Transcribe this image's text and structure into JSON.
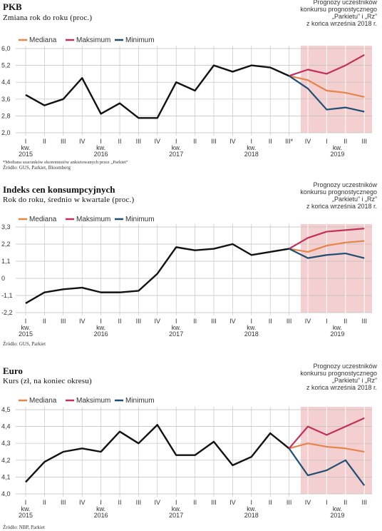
{
  "colors": {
    "mediana": "#e8834a",
    "maksimum": "#c2305a",
    "minimum": "#1f4e74",
    "actual": "#111111",
    "forecast_band": "#f3cfcf",
    "grid": "#bdbdbd"
  },
  "legend": {
    "mediana": "Mediana",
    "maksimum": "Maksimum",
    "minimum": "Minimum"
  },
  "forecast_note": [
    "Prognozy uczestników",
    "konkursu prognostycznego",
    "„Parkietu” i „Rz”",
    "z końca września 2018 r."
  ],
  "x_axis": {
    "quarters": [
      "I",
      "II",
      "III",
      "IV",
      "I",
      "II",
      "III",
      "IV",
      "I",
      "II",
      "III",
      "IV",
      "I",
      "II",
      "III",
      "IV",
      "I",
      "II",
      "III"
    ],
    "year_marks": [
      {
        "kw": "kw.",
        "year": "2015"
      },
      {
        "kw": "kw.",
        "year": "2016"
      },
      {
        "kw": "kw.",
        "year": "2017"
      },
      {
        "kw": "kw.",
        "year": "2018"
      },
      {
        "kw": "kw.",
        "year": "2019"
      }
    ]
  },
  "panels": [
    {
      "title": "PKB",
      "subtitle": "Zmiana rok do roku (proc.)",
      "note": "*Mediana szacunków ekonomistów ankietowanych przez „Parkiet”",
      "source": "Źródło: GUS, Parkiet, Bloomberg",
      "third_q_2018_label": "III*",
      "chart_data": {
        "type": "line",
        "y_ticks": [
          "6,0",
          "5,2",
          "4,4",
          "3,6",
          "2,8",
          "2,0"
        ],
        "ylim": [
          2.0,
          6.0
        ],
        "actual": [
          3.8,
          3.3,
          3.6,
          4.6,
          2.9,
          3.4,
          2.7,
          2.7,
          4.4,
          4.0,
          5.2,
          4.9,
          5.2,
          5.1,
          4.7
        ],
        "series": [
          {
            "name": "Mediana",
            "values": [
              4.7,
              4.5,
              4.0,
              3.9,
              3.7
            ]
          },
          {
            "name": "Maksimum",
            "values": [
              4.7,
              5.0,
              4.8,
              5.2,
              5.7
            ]
          },
          {
            "name": "Minimum",
            "values": [
              4.7,
              4.1,
              3.1,
              3.2,
              3.0
            ]
          }
        ]
      }
    },
    {
      "title": "Indeks cen konsumpcyjnych",
      "subtitle": "Rok do roku, średnio w kwartale (proc.)",
      "source": "Źródło: GUS, Parkiet",
      "chart_data": {
        "type": "line",
        "y_ticks": [
          "3,3",
          "2,2",
          "1,1",
          "0",
          "-1,1",
          "-2,2"
        ],
        "ylim": [
          -2.2,
          3.3
        ],
        "actual": [
          -1.6,
          -0.9,
          -0.7,
          -0.6,
          -0.9,
          -0.9,
          -0.8,
          0.3,
          2.0,
          1.8,
          1.9,
          2.2,
          1.5,
          1.7,
          1.9
        ],
        "series": [
          {
            "name": "Mediana",
            "values": [
              1.9,
              1.7,
              2.1,
              2.3,
              2.4
            ]
          },
          {
            "name": "Maksimum",
            "values": [
              1.9,
              2.6,
              3.0,
              3.1,
              3.2
            ]
          },
          {
            "name": "Minimum",
            "values": [
              1.9,
              1.3,
              1.5,
              1.6,
              1.3
            ]
          }
        ]
      }
    },
    {
      "title": "Euro",
      "subtitle": "Kurs (zł, na koniec okresu)",
      "source": "Źródło: NBP, Parkiet",
      "chart_data": {
        "type": "line",
        "y_ticks": [
          "4,5",
          "4,4",
          "4,3",
          "4,2",
          "4,1",
          "4,0"
        ],
        "ylim": [
          4.0,
          4.5
        ],
        "actual": [
          4.07,
          4.19,
          4.25,
          4.27,
          4.25,
          4.37,
          4.3,
          4.41,
          4.23,
          4.23,
          4.31,
          4.17,
          4.22,
          4.36,
          4.27
        ],
        "series": [
          {
            "name": "Mediana",
            "values": [
              4.27,
              4.3,
              4.28,
              4.27,
              4.25
            ]
          },
          {
            "name": "Maksimum",
            "values": [
              4.27,
              4.4,
              4.35,
              4.4,
              4.45
            ]
          },
          {
            "name": "Minimum",
            "values": [
              4.27,
              4.11,
              4.14,
              4.2,
              4.05
            ]
          }
        ]
      }
    }
  ]
}
